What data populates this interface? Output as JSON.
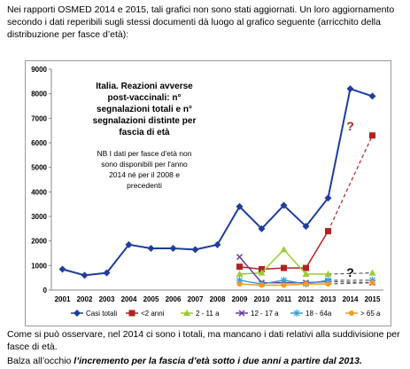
{
  "intro": "Nei rapporti OSMED 2014 e 2015, tali grafici non sono stati aggiornati. Un loro aggiornamento secondo i dati reperibili sugli stessi documenti dà luogo al grafico seguente (arricchito della distribuzione per fasce d’età):",
  "chart_data": {
    "type": "line",
    "title_lines": [
      "Italia. Reazioni avverse",
      "post-vaccinali: n°",
      "segnalazioni totali e n°",
      "segnalazioni  distinte per",
      "fascia di età"
    ],
    "note_lines": [
      "NB I dati per fasce d'età non",
      "sono disponibili per l'anno",
      "2014 né per il 2008 e",
      "precedenti"
    ],
    "categories": [
      "2001",
      "2002",
      "2003",
      "2004",
      "2005",
      "2006",
      "2007",
      "2008",
      "2009",
      "2010",
      "2011",
      "2012",
      "2013",
      "2014",
      "2015"
    ],
    "ylim": [
      0,
      9000
    ],
    "yticks": [
      0,
      1000,
      2000,
      3000,
      4000,
      5000,
      6000,
      7000,
      8000,
      9000
    ],
    "series": [
      {
        "name": "Casi totali",
        "color": "#1f3d9c",
        "marker": "diamond",
        "values": [
          850,
          600,
          700,
          1850,
          1700,
          1700,
          1650,
          1850,
          3400,
          2500,
          3450,
          2600,
          3750,
          8200,
          7900
        ]
      },
      {
        "name": "<2 anni",
        "color": "#b22222",
        "marker": "square",
        "values": [
          null,
          null,
          null,
          null,
          null,
          null,
          null,
          null,
          950,
          850,
          900,
          900,
          2400,
          null,
          6300
        ]
      },
      {
        "name": "2 - 11 a",
        "color": "#9acd32",
        "marker": "triangle",
        "values": [
          null,
          null,
          null,
          null,
          null,
          null,
          null,
          null,
          650,
          700,
          1650,
          650,
          650,
          null,
          700
        ]
      },
      {
        "name": "12 - 17 a",
        "color": "#6a3d9a",
        "marker": "cross",
        "values": [
          null,
          null,
          null,
          null,
          null,
          null,
          null,
          null,
          1350,
          300,
          300,
          300,
          350,
          null,
          300
        ]
      },
      {
        "name": "18 - 64a",
        "color": "#3aa0d8",
        "marker": "star",
        "values": [
          null,
          null,
          null,
          null,
          null,
          null,
          null,
          null,
          400,
          250,
          400,
          250,
          400,
          null,
          400
        ]
      },
      {
        "name": "> 65 a",
        "color": "#f59a23",
        "marker": "circle",
        "values": [
          null,
          null,
          null,
          null,
          null,
          null,
          null,
          null,
          250,
          200,
          200,
          250,
          250,
          null,
          300
        ]
      }
    ],
    "annotations": [
      {
        "text": "?",
        "color": "#b22222",
        "x": 13,
        "y": 6500
      },
      {
        "text": "?",
        "color": "#000000",
        "x": 13,
        "y": 550
      }
    ]
  },
  "outro": "Come si può osservare, nel 2014 ci sono i totali, ma mancano i dati relativi alla suddivisione per fasce di età.",
  "final": {
    "lead": "Balza all’occhio ",
    "emphasis": "l’incremento per la fascia d’età sotto i due anni a partire dal 2013."
  }
}
